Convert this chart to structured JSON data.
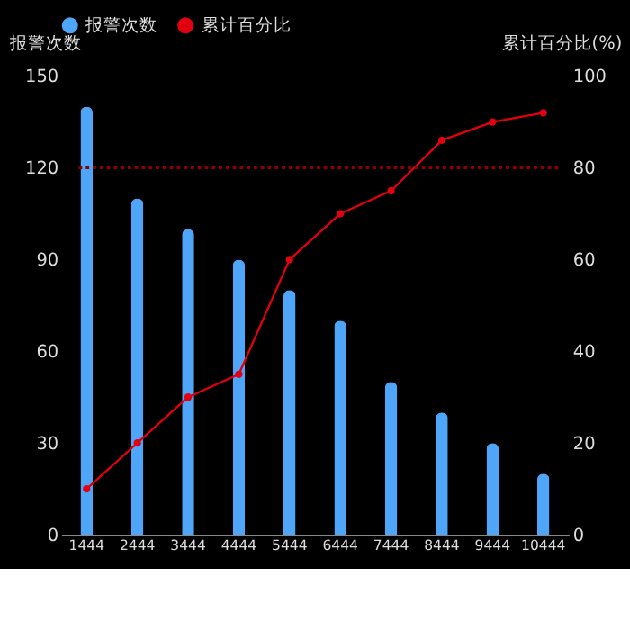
{
  "chart_data": {
    "type": "bar",
    "categories": [
      "1444",
      "2444",
      "3444",
      "4444",
      "5444",
      "6444",
      "7444",
      "8444",
      "9444",
      "10444"
    ],
    "ylabel": "报警次数",
    "y2label": "累计百分比(%)",
    "series": [
      {
        "name": "报警次数",
        "color": "#4fa6f8",
        "values": [
          140,
          110,
          100,
          90,
          80,
          70,
          50,
          40,
          30,
          20
        ]
      },
      {
        "name": "累计百分比",
        "type": "line",
        "axis": "y2",
        "color": "#e0000f",
        "marker": "circle",
        "values": [
          10,
          20,
          30,
          35,
          60,
          70,
          75,
          86,
          90,
          92
        ]
      }
    ],
    "ylim": [
      0,
      150
    ],
    "yticks": [
      0,
      30,
      60,
      90,
      120,
      150
    ],
    "y2lim": [
      0,
      100
    ],
    "y2ticks": [
      0,
      20,
      40,
      60,
      80,
      100
    ],
    "ref_lines": [
      {
        "axis": "y2",
        "value": 80,
        "color": "#8b0000",
        "line_style": "dotted"
      }
    ],
    "grid": false,
    "legend": "top"
  }
}
